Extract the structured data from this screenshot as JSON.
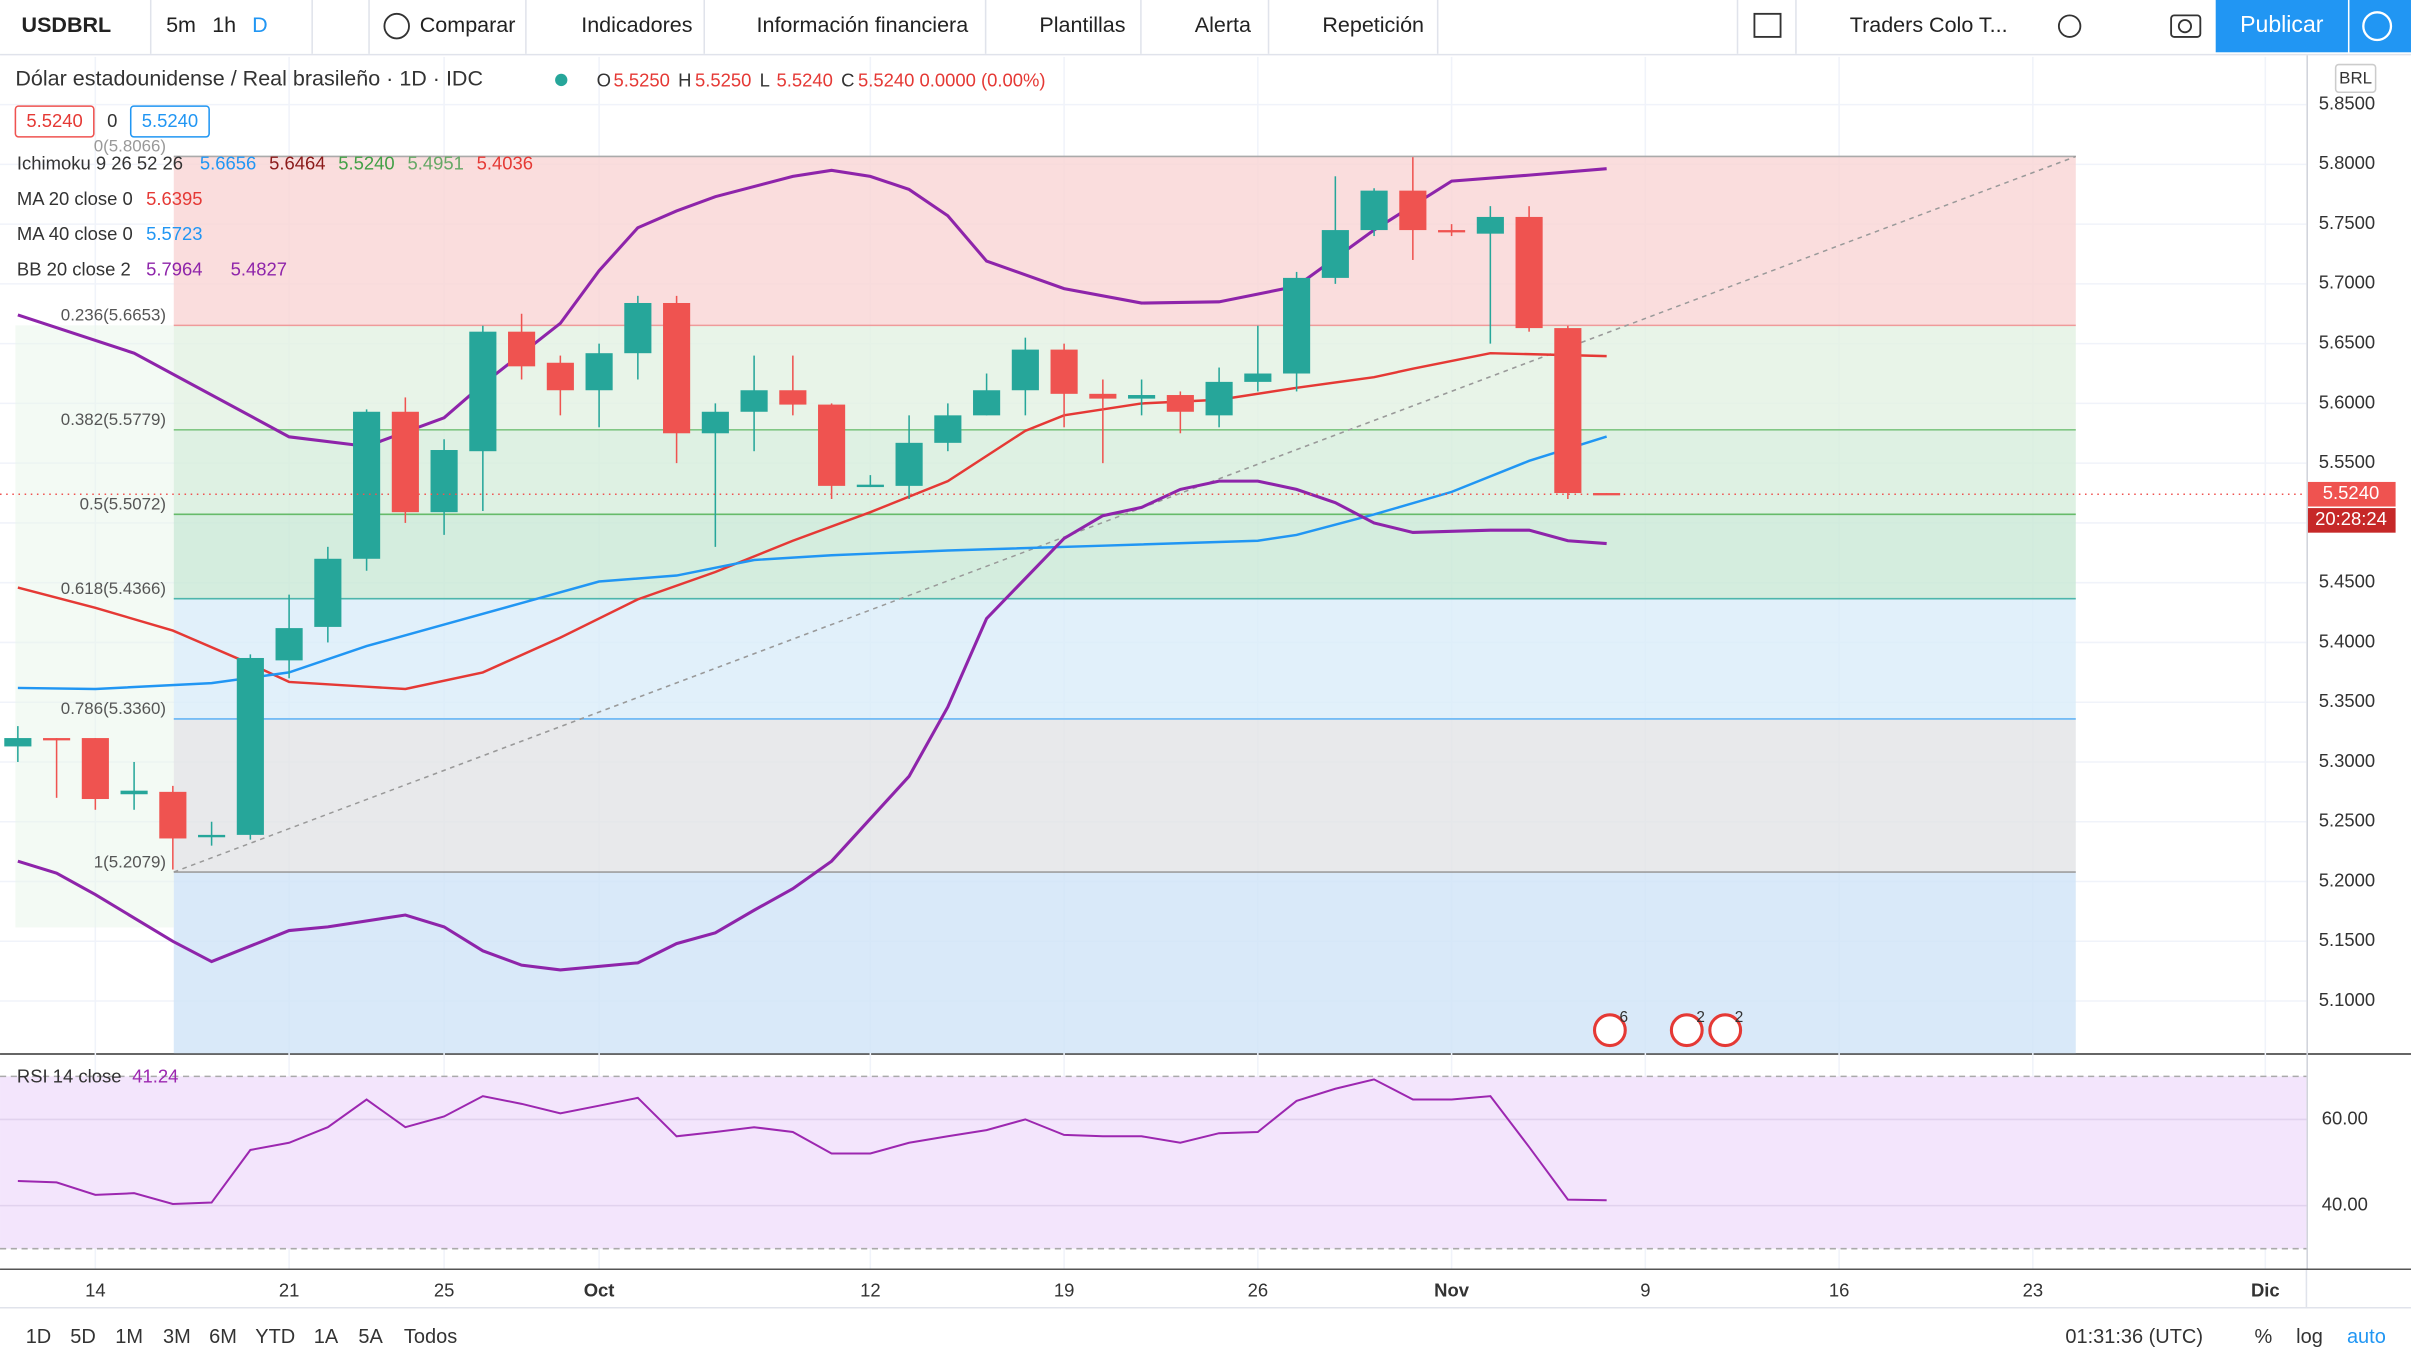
{
  "toolbar": {
    "symbol": "USDBRL",
    "intervals": [
      "5m",
      "1h",
      "D"
    ],
    "compare": "Comparar",
    "indicators": "Indicadores",
    "financials": "Información financiera",
    "templates": "Plantillas",
    "alert": "Alerta",
    "replay": "Repetición",
    "layout": "Traders Colo T...",
    "publish": "Publicar"
  },
  "legend": {
    "title": "Dólar estadounidense / Real brasileño · 1D · IDC",
    "ohlc": [
      {
        "key": "O",
        "label": "5.5250"
      },
      {
        "key": "H",
        "label": "5.5250"
      },
      {
        "key": "L",
        "label": "5.5240"
      },
      {
        "key": "C",
        "label": "5.5240"
      }
    ],
    "change": "0.0000 (0.00%)",
    "boxes": [
      "5.5240",
      "0",
      "5.5240"
    ],
    "ichimoku": {
      "label": "Ichimoku 9 26 52 26",
      "values": [
        "5.6656",
        "5.6464",
        "5.5240",
        "5.4951",
        "5.4036"
      ],
      "colors": [
        "#2196f3",
        "#8b1a1a",
        "#43a047",
        "#66a866",
        "#e53935"
      ]
    }
  },
  "chart_data": {
    "type": "candlestick",
    "currency": "BRL",
    "up_color": "#26a69a",
    "down_color": "#ef5350",
    "x": [
      -2,
      -1,
      0,
      1,
      2,
      3,
      4,
      5,
      6,
      7,
      8,
      9,
      10,
      11,
      12,
      13,
      14,
      15,
      16,
      17,
      18,
      19,
      20,
      21,
      22,
      23,
      24,
      25,
      26,
      27,
      28,
      29,
      30,
      31,
      32,
      33,
      34,
      35,
      36,
      37,
      38,
      39
    ],
    "ohlc": [
      [
        5.313,
        5.33,
        5.3,
        5.32
      ],
      [
        5.32,
        5.32,
        5.27,
        5.319
      ],
      [
        5.32,
        5.32,
        5.26,
        5.269
      ],
      [
        5.273,
        5.3,
        5.26,
        5.276
      ],
      [
        5.275,
        5.28,
        5.21,
        5.236
      ],
      [
        5.237,
        5.25,
        5.23,
        5.239
      ],
      [
        5.239,
        5.39,
        5.235,
        5.387
      ],
      [
        5.385,
        5.44,
        5.37,
        5.412
      ],
      [
        5.413,
        5.48,
        5.4,
        5.47
      ],
      [
        5.47,
        5.595,
        5.46,
        5.593
      ],
      [
        5.593,
        5.605,
        5.5,
        5.509
      ],
      [
        5.509,
        5.57,
        5.49,
        5.561
      ],
      [
        5.56,
        5.665,
        5.51,
        5.66
      ],
      [
        5.66,
        5.675,
        5.62,
        5.631
      ],
      [
        5.634,
        5.64,
        5.59,
        5.611
      ],
      [
        5.611,
        5.65,
        5.58,
        5.642
      ],
      [
        5.642,
        5.69,
        5.62,
        5.684
      ],
      [
        5.684,
        5.69,
        5.55,
        5.575
      ],
      [
        5.575,
        5.6,
        5.48,
        5.593
      ],
      [
        5.593,
        5.64,
        5.56,
        5.611
      ],
      [
        5.611,
        5.64,
        5.59,
        5.599
      ],
      [
        5.599,
        5.6,
        5.52,
        5.531
      ],
      [
        5.53,
        5.54,
        5.53,
        5.532
      ],
      [
        5.531,
        5.59,
        5.52,
        5.567
      ],
      [
        5.567,
        5.6,
        5.56,
        5.59
      ],
      [
        5.59,
        5.625,
        5.59,
        5.611
      ],
      [
        5.611,
        5.655,
        5.59,
        5.645
      ],
      [
        5.645,
        5.65,
        5.58,
        5.608
      ],
      [
        5.608,
        5.62,
        5.55,
        5.604
      ],
      [
        5.604,
        5.62,
        5.59,
        5.607
      ],
      [
        5.607,
        5.61,
        5.575,
        5.593
      ],
      [
        5.59,
        5.63,
        5.58,
        5.618
      ],
      [
        5.618,
        5.665,
        5.61,
        5.625
      ],
      [
        5.625,
        5.71,
        5.61,
        5.705
      ],
      [
        5.705,
        5.79,
        5.7,
        5.745
      ],
      [
        5.745,
        5.78,
        5.74,
        5.778
      ],
      [
        5.778,
        5.806,
        5.72,
        5.745
      ],
      [
        5.745,
        5.75,
        5.74,
        5.744
      ],
      [
        5.742,
        5.765,
        5.65,
        5.756
      ],
      [
        5.756,
        5.765,
        5.66,
        5.663
      ],
      [
        5.663,
        5.665,
        5.52,
        5.525
      ],
      [
        5.525,
        5.525,
        5.524,
        5.524
      ]
    ],
    "lines": [
      {
        "name": "MA 20 close 0",
        "color": "#e53935",
        "legend_values": [
          "5.6395"
        ],
        "x": [
          -2,
          0,
          2,
          4,
          5,
          7,
          8,
          10,
          12,
          14,
          16,
          18,
          20,
          22,
          24,
          25,
          27,
          29,
          31,
          33,
          34,
          36,
          39
        ],
        "values": [
          5.446,
          5.429,
          5.41,
          5.382,
          5.367,
          5.363,
          5.361,
          5.375,
          5.404,
          5.436,
          5.459,
          5.485,
          5.509,
          5.535,
          5.577,
          5.59,
          5.6,
          5.603,
          5.613,
          5.622,
          5.629,
          5.642,
          5.6395
        ]
      },
      {
        "name": "MA 40 close 0",
        "color": "#2196f3",
        "legend_values": [
          "5.5723"
        ],
        "x": [
          -2,
          0,
          3,
          5,
          7,
          9,
          11,
          13,
          15,
          17,
          19,
          22,
          26,
          30,
          31,
          33,
          35,
          37,
          39
        ],
        "values": [
          5.362,
          5.361,
          5.366,
          5.375,
          5.397,
          5.415,
          5.433,
          5.451,
          5.456,
          5.469,
          5.473,
          5.477,
          5.481,
          5.485,
          5.49,
          5.507,
          5.526,
          5.552,
          5.5723
        ]
      },
      {
        "name": "BB 20 close 2",
        "color": "#8e24aa",
        "legend_values": [
          "5.7964",
          "5.4827"
        ],
        "x": [
          -2,
          1,
          5,
          7,
          9,
          10,
          12,
          13,
          14,
          15,
          16,
          18,
          19,
          20,
          21,
          22,
          23,
          25,
          27,
          29,
          31,
          33,
          35,
          37,
          39
        ],
        "values": [
          5.674,
          5.642,
          5.572,
          5.564,
          5.588,
          5.616,
          5.667,
          5.711,
          5.747,
          5.761,
          5.773,
          5.79,
          5.795,
          5.79,
          5.779,
          5.757,
          5.719,
          5.696,
          5.684,
          5.685,
          5.698,
          5.745,
          5.786,
          5.791,
          5.7964
        ]
      },
      {
        "color": "#8e24aa",
        "x": [
          -2,
          -1,
          0,
          2,
          3,
          5,
          6,
          8,
          9,
          10,
          11,
          12,
          14,
          15,
          16,
          17,
          18,
          19,
          21,
          22,
          23,
          25,
          26,
          27,
          28,
          29,
          30,
          31,
          32,
          33,
          34,
          36,
          37,
          38,
          39
        ],
        "values": [
          5.217,
          5.207,
          5.189,
          5.15,
          5.133,
          5.159,
          5.162,
          5.172,
          5.162,
          5.142,
          5.13,
          5.126,
          5.132,
          5.148,
          5.157,
          5.176,
          5.194,
          5.217,
          5.288,
          5.346,
          5.42,
          5.487,
          5.506,
          5.513,
          5.528,
          5.535,
          5.535,
          5.528,
          5.517,
          5.5,
          5.492,
          5.494,
          5.494,
          5.485,
          5.4827
        ]
      }
    ],
    "fib": {
      "levels": [
        {
          "label": "0(5.8066)",
          "value": 5.8066
        },
        {
          "label": "0.236(5.6653)",
          "value": 5.6653
        },
        {
          "label": "0.382(5.5779)",
          "value": 5.5779
        },
        {
          "label": "0.5(5.5072)",
          "value": 5.5072
        },
        {
          "label": "0.618(5.4366)",
          "value": 5.4366
        },
        {
          "label": "0.786(5.3360)",
          "value": 5.336
        },
        {
          "label": "1(5.2079)",
          "value": 5.2079
        }
      ],
      "zone_colors": [
        "#f9d5d5",
        "#e2f1e2",
        "#d6eedc",
        "#c9e8d6",
        "#d9ecf9",
        "#e2e4e6",
        "#cfe3f7"
      ],
      "line_colors": [
        "#aaaaaa",
        "#ef9a9a",
        "#81c784",
        "#66bb6a",
        "#4db6ac",
        "#64b5f6",
        "#9e9e9e"
      ]
    },
    "last_price": {
      "value": 5.524,
      "label": "5.5240",
      "countdown": "20:28:24"
    },
    "events": [
      "6",
      "2",
      "2"
    ],
    "ylim": [
      5.0563,
      5.8899
    ],
    "yticks": [
      {
        "value": 5.85,
        "label": "5.8500"
      },
      {
        "value": 5.8,
        "label": "5.8000"
      },
      {
        "value": 5.75,
        "label": "5.7500"
      },
      {
        "value": 5.7,
        "label": "5.7000"
      },
      {
        "value": 5.65,
        "label": "5.6500"
      },
      {
        "value": 5.6,
        "label": "5.6000"
      },
      {
        "value": 5.55,
        "label": "5.5500"
      },
      {
        "value": 5.5,
        "label": "5.5000"
      },
      {
        "value": 5.45,
        "label": "5.4500"
      },
      {
        "value": 5.4,
        "label": "5.4000"
      },
      {
        "value": 5.35,
        "label": "5.3500"
      },
      {
        "value": 5.3,
        "label": "5.3000"
      },
      {
        "value": 5.25,
        "label": "5.2500"
      },
      {
        "value": 5.2,
        "label": "5.2000"
      },
      {
        "value": 5.15,
        "label": "5.1500"
      },
      {
        "value": 5.1,
        "label": "5.1000"
      }
    ],
    "xlim": [
      -2.46,
      57.06
    ],
    "xticks": [
      {
        "value": 0,
        "label": "14"
      },
      {
        "value": 5,
        "label": "21"
      },
      {
        "value": 9,
        "label": "25"
      },
      {
        "value": 13,
        "label": "Oct"
      },
      {
        "value": 20,
        "label": "12"
      },
      {
        "value": 25,
        "label": "19"
      },
      {
        "value": 30,
        "label": "26"
      },
      {
        "value": 35,
        "label": "Nov"
      },
      {
        "value": 40,
        "label": "9"
      },
      {
        "value": 45,
        "label": "16"
      },
      {
        "value": 50,
        "label": "23"
      },
      {
        "value": 56,
        "label": "Dic"
      }
    ],
    "rsi": {
      "name": "RSI 14 close",
      "label": "41.24",
      "color": "#9c27b0",
      "x": [
        -2,
        -1,
        0,
        1,
        2,
        3,
        4,
        5,
        6,
        7,
        8,
        9,
        10,
        11,
        12,
        13,
        14,
        15,
        16,
        17,
        18,
        19,
        20,
        21,
        22,
        23,
        24,
        25,
        26,
        27,
        28,
        29,
        30,
        31,
        32,
        33,
        34,
        35,
        36,
        37,
        38,
        39
      ],
      "values": [
        45.7,
        45.4,
        42.5,
        42.9,
        40.4,
        40.7,
        52.9,
        54.6,
        58.2,
        64.6,
        58.2,
        60.7,
        65.4,
        63.6,
        61.4,
        63.2,
        65,
        56.1,
        57.1,
        58.2,
        57.1,
        52.1,
        52.1,
        54.6,
        56.1,
        57.5,
        60,
        56.4,
        56.1,
        56.1,
        54.6,
        56.8,
        57.1,
        64.3,
        67.1,
        69.3,
        64.6,
        64.6,
        65.4,
        53.6,
        41.4,
        41.24
      ],
      "ylim": [
        25.4,
        75
      ],
      "band": [
        30,
        70
      ],
      "yticks": [
        {
          "value": 60,
          "label": "60.00"
        },
        {
          "value": 40,
          "label": "40.00"
        }
      ]
    }
  },
  "bottom_bar": {
    "periods": [
      "1D",
      "5D",
      "1M",
      "3M",
      "6M",
      "YTD",
      "1A",
      "5A",
      "Todos"
    ],
    "clock": "01:31:36 (UTC)",
    "percent": "%",
    "log": "log",
    "auto": "auto"
  }
}
